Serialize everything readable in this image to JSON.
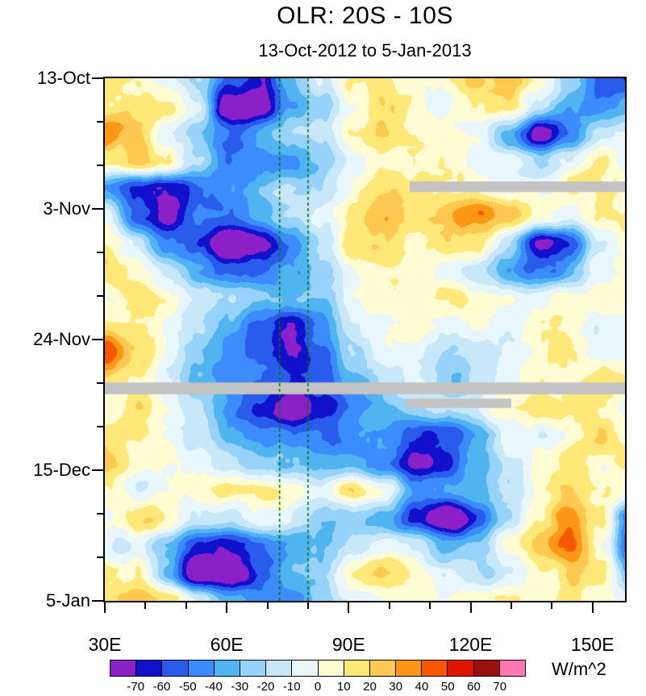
{
  "title": "OLR: 20S - 10S",
  "subtitle": "13-Oct-2012 to 5-Jan-2013",
  "chart_data": {
    "type": "heatmap",
    "description": "Hovmoller (time-longitude) diagram of OLR anomalies averaged 20S-10S",
    "x_axis": {
      "ticks": [
        {
          "label": "30E",
          "lon": 30
        },
        {
          "label": "60E",
          "lon": 60
        },
        {
          "label": "90E",
          "lon": 90
        },
        {
          "label": "120E",
          "lon": 120
        },
        {
          "label": "150E",
          "lon": 150
        }
      ],
      "minor_step_deg": 10,
      "range": [
        30,
        158
      ]
    },
    "y_axis": {
      "ticks": [
        {
          "label": "13-Oct",
          "day": 0
        },
        {
          "label": "3-Nov",
          "day": 21
        },
        {
          "label": "24-Nov",
          "day": 42
        },
        {
          "label": "15-Dec",
          "day": 63
        },
        {
          "label": "5-Jan",
          "day": 84
        }
      ],
      "minor_step_days": 7,
      "range_days": [
        0,
        84
      ]
    },
    "colorbar": {
      "levels": [
        -70,
        -60,
        -50,
        -40,
        -30,
        -20,
        -10,
        0,
        10,
        20,
        30,
        40,
        50,
        60,
        70
      ],
      "colors": [
        "#8B1FC8",
        "#1111CC",
        "#2A5CEB",
        "#3C8CFF",
        "#50B4F0",
        "#96D2FA",
        "#C8E8FA",
        "#E8F6FD",
        "#FFFBD2",
        "#FFE878",
        "#FFC850",
        "#FF9614",
        "#F55800",
        "#E11400",
        "#9B1010",
        "#FF78B4"
      ],
      "units": "W/m^2"
    },
    "reference_lines": {
      "color": "#007A00",
      "style": "dashed",
      "longitudes": [
        73,
        80
      ]
    },
    "missing_data": {
      "color": "#C3C3C3",
      "bars": [
        {
          "day_start": 16.6,
          "day_end": 18.3,
          "lon_start": 105,
          "lon_end": 158
        },
        {
          "day_start": 48.9,
          "day_end": 50.8,
          "lon_start": 30,
          "lon_end": 158
        },
        {
          "day_start": 51.5,
          "day_end": 53.0,
          "lon_start": 104,
          "lon_end": 130
        }
      ]
    },
    "grid": {
      "comment": "Approximate OLR anomaly values (W/m^2), rows = time (13-Oct to 5-Jan), cols = longitude (30E to 160E)",
      "lon_start": 30,
      "lon_end": 160,
      "day_start": 0,
      "day_end": 84,
      "values": [
        [
          30,
          20,
          10,
          -10,
          -50,
          -60,
          -20,
          10,
          30,
          30,
          20,
          20,
          30,
          40,
          20,
          -10,
          -40,
          -50
        ],
        [
          20,
          30,
          20,
          0,
          -70,
          -70,
          -30,
          -10,
          20,
          40,
          30,
          10,
          20,
          30,
          0,
          -20,
          -30,
          -20
        ],
        [
          50,
          30,
          0,
          -20,
          -30,
          -20,
          -10,
          0,
          30,
          40,
          30,
          20,
          10,
          -20,
          -60,
          -30,
          0,
          10
        ],
        [
          30,
          40,
          20,
          -10,
          -30,
          -20,
          -20,
          -10,
          10,
          20,
          20,
          20,
          10,
          10,
          0,
          10,
          20,
          10
        ],
        [
          -20,
          -50,
          -60,
          -40,
          -20,
          -10,
          0,
          0,
          20,
          30,
          30,
          20,
          20,
          10,
          20,
          30,
          20,
          20
        ],
        [
          10,
          -40,
          -60,
          -30,
          -30,
          -20,
          -10,
          10,
          30,
          40,
          30,
          40,
          50,
          30,
          20,
          10,
          20,
          30
        ],
        [
          20,
          0,
          -30,
          -40,
          -70,
          -60,
          -30,
          0,
          30,
          30,
          20,
          30,
          30,
          0,
          -50,
          -40,
          0,
          20
        ],
        [
          30,
          20,
          0,
          -20,
          -30,
          -30,
          -20,
          -10,
          10,
          20,
          20,
          10,
          0,
          -20,
          -30,
          -20,
          10,
          20
        ],
        [
          20,
          30,
          20,
          10,
          0,
          -10,
          -20,
          -10,
          10,
          20,
          30,
          30,
          20,
          20,
          10,
          20,
          30,
          20
        ],
        [
          30,
          20,
          10,
          0,
          -20,
          -40,
          -60,
          -30,
          0,
          10,
          20,
          10,
          20,
          10,
          20,
          20,
          10,
          20
        ],
        [
          60,
          30,
          10,
          -10,
          -30,
          -40,
          -60,
          -40,
          -10,
          10,
          0,
          -10,
          0,
          10,
          20,
          30,
          20,
          10
        ],
        [
          40,
          20,
          0,
          -20,
          -30,
          -40,
          -50,
          -40,
          -20,
          0,
          0,
          -10,
          0,
          10,
          20,
          20,
          30,
          20
        ],
        [
          20,
          30,
          10,
          -10,
          -30,
          -50,
          -80,
          -50,
          -30,
          -20,
          -10,
          0,
          10,
          20,
          30,
          30,
          20,
          10
        ],
        [
          30,
          20,
          10,
          0,
          -20,
          -30,
          -40,
          -30,
          -30,
          -30,
          -40,
          -40,
          -20,
          0,
          10,
          20,
          30,
          20
        ],
        [
          30,
          20,
          20,
          10,
          0,
          -10,
          -20,
          -20,
          -20,
          -30,
          -60,
          -50,
          -20,
          0,
          20,
          30,
          20,
          30
        ],
        [
          20,
          10,
          20,
          20,
          30,
          30,
          20,
          10,
          40,
          20,
          -30,
          -30,
          -20,
          0,
          20,
          40,
          30,
          20
        ],
        [
          20,
          30,
          20,
          10,
          0,
          10,
          0,
          -10,
          -10,
          -20,
          -50,
          -70,
          -40,
          -10,
          20,
          50,
          30,
          -40
        ],
        [
          10,
          0,
          -20,
          -40,
          -50,
          -40,
          -30,
          -20,
          0,
          10,
          0,
          -20,
          -10,
          20,
          40,
          60,
          20,
          -50
        ],
        [
          40,
          20,
          -20,
          -60,
          -70,
          -40,
          -20,
          -20,
          20,
          30,
          20,
          0,
          -10,
          10,
          30,
          40,
          30,
          -20
        ],
        [
          30,
          40,
          30,
          0,
          -20,
          -30,
          -30,
          -10,
          10,
          20,
          20,
          10,
          20,
          30,
          20,
          30,
          20,
          10
        ]
      ]
    }
  }
}
